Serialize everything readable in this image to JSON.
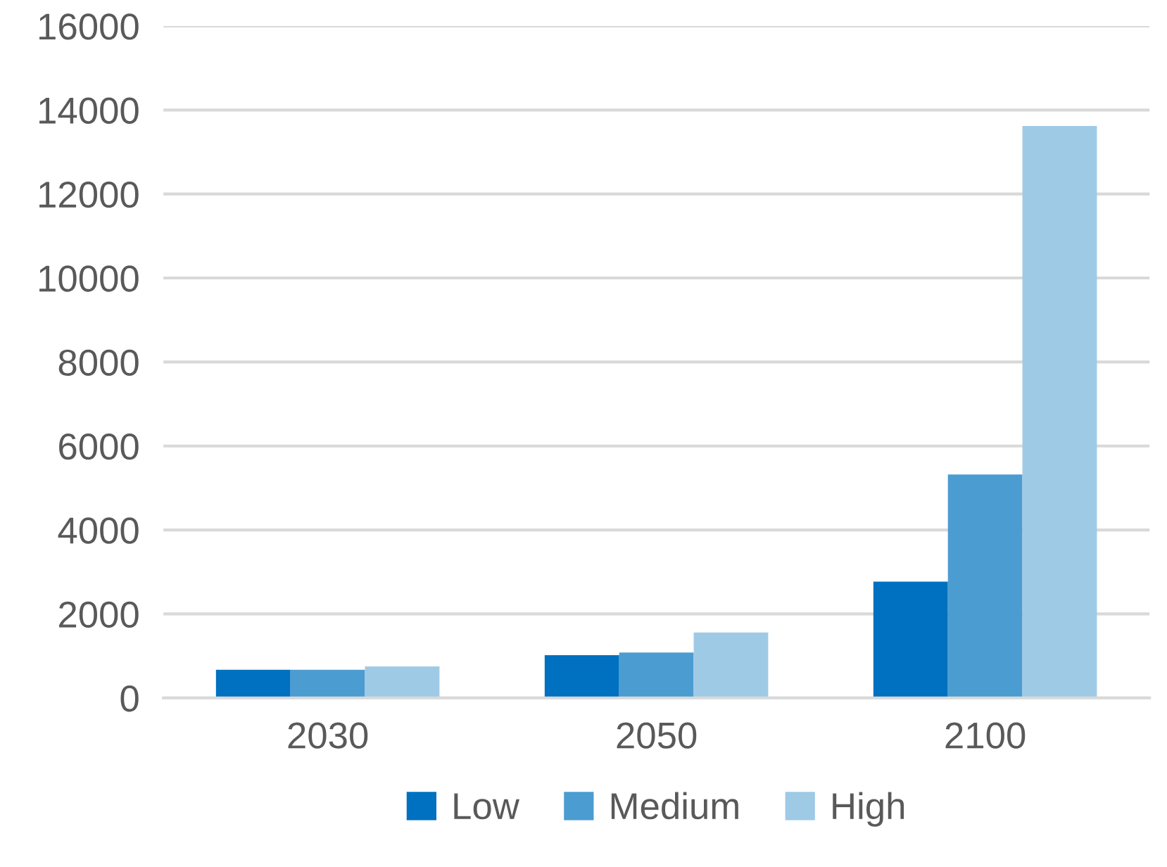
{
  "chart_data": {
    "type": "bar",
    "categories": [
      "2030",
      "2050",
      "2100"
    ],
    "series": [
      {
        "name": "Low",
        "color": "#0070c0",
        "values": [
          670,
          1020,
          2770
        ]
      },
      {
        "name": "Medium",
        "color": "#4b9cd1",
        "values": [
          670,
          1080,
          5320
        ]
      },
      {
        "name": "High",
        "color": "#9fcae6",
        "values": [
          750,
          1560,
          13620
        ]
      }
    ],
    "ylim": [
      0,
      16000
    ],
    "yticks": [
      0,
      2000,
      4000,
      6000,
      8000,
      10000,
      12000,
      14000,
      16000
    ],
    "grid": "y",
    "legend": "bottom"
  }
}
